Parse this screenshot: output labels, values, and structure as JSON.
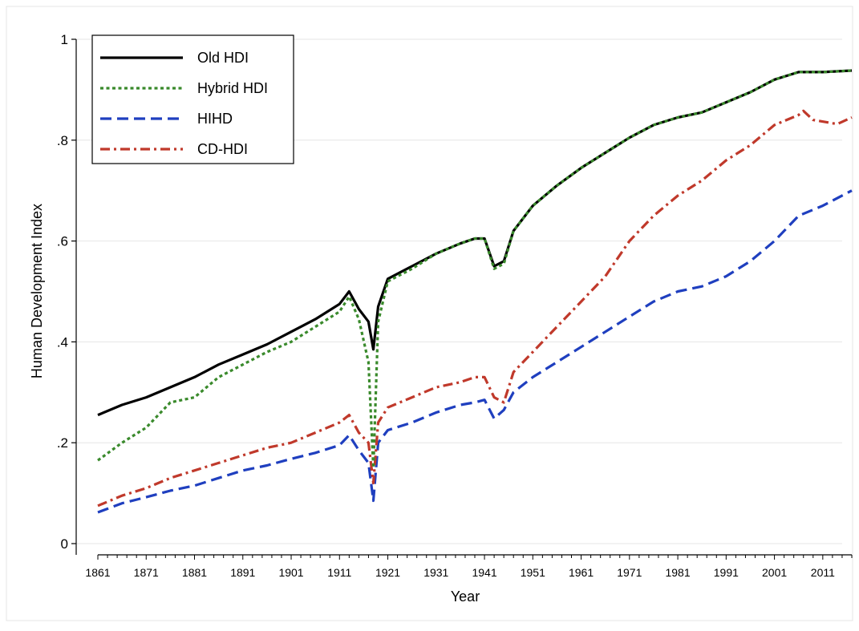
{
  "chart_data": {
    "type": "line",
    "title": "",
    "xlabel": "Year",
    "ylabel": "Human Development Index",
    "xlim": [
      1861,
      2017
    ],
    "ylim": [
      0,
      1
    ],
    "x_ticks": [
      1861,
      1871,
      1881,
      1891,
      1901,
      1911,
      1921,
      1931,
      1941,
      1951,
      1961,
      1971,
      1981,
      1991,
      2001,
      2011
    ],
    "x_tick_labels": [
      "1861",
      "1871",
      "1881",
      "1891",
      "1901",
      "1911",
      "1921",
      "1931",
      "1941",
      "1951",
      "1961",
      "1971",
      "1981",
      "1991",
      "2001",
      "2011"
    ],
    "y_ticks": [
      0,
      0.2,
      0.4,
      0.6,
      0.8,
      1
    ],
    "y_tick_labels": [
      "0",
      ".2",
      ".4",
      ".6",
      ".8",
      "1"
    ],
    "grid": "horizontal",
    "legend_position": "top-left",
    "series": [
      {
        "name": "Old HDI",
        "color": "#000000",
        "dash": "solid",
        "x": [
          1861,
          1866,
          1871,
          1876,
          1881,
          1886,
          1891,
          1896,
          1901,
          1906,
          1911,
          1913,
          1915,
          1917,
          1918,
          1919,
          1921,
          1926,
          1931,
          1936,
          1939,
          1941,
          1943,
          1945,
          1947,
          1951,
          1956,
          1961,
          1966,
          1971,
          1976,
          1981,
          1986,
          1991,
          1996,
          2001,
          2006,
          2011,
          2017
        ],
        "y": [
          0.255,
          0.275,
          0.29,
          0.31,
          0.33,
          0.355,
          0.375,
          0.395,
          0.42,
          0.445,
          0.475,
          0.5,
          0.465,
          0.44,
          0.385,
          0.47,
          0.525,
          0.55,
          0.575,
          0.595,
          0.605,
          0.605,
          0.55,
          0.56,
          0.62,
          0.67,
          0.71,
          0.745,
          0.775,
          0.805,
          0.83,
          0.845,
          0.855,
          0.875,
          0.895,
          0.92,
          0.935,
          0.935,
          0.938
        ]
      },
      {
        "name": "Hybrid HDI",
        "color": "#3a8a2c",
        "dash": "dotted",
        "x": [
          1861,
          1866,
          1871,
          1876,
          1881,
          1886,
          1891,
          1896,
          1901,
          1906,
          1911,
          1913,
          1915,
          1917,
          1918,
          1919,
          1921,
          1926,
          1931,
          1936,
          1939,
          1941,
          1943,
          1945,
          1947,
          1951,
          1956,
          1961,
          1966,
          1971,
          1976,
          1981,
          1986,
          1991,
          1996,
          2001,
          2006,
          2011,
          2017
        ],
        "y": [
          0.165,
          0.2,
          0.23,
          0.28,
          0.29,
          0.33,
          0.355,
          0.38,
          0.4,
          0.43,
          0.46,
          0.49,
          0.445,
          0.36,
          0.15,
          0.44,
          0.52,
          0.545,
          0.575,
          0.595,
          0.605,
          0.605,
          0.545,
          0.555,
          0.62,
          0.67,
          0.71,
          0.745,
          0.775,
          0.805,
          0.83,
          0.845,
          0.855,
          0.875,
          0.895,
          0.92,
          0.935,
          0.935,
          0.938
        ]
      },
      {
        "name": "HIHD",
        "color": "#1f3fbf",
        "dash": "dashed",
        "x": [
          1861,
          1866,
          1871,
          1876,
          1881,
          1886,
          1891,
          1896,
          1901,
          1906,
          1911,
          1913,
          1915,
          1917,
          1918,
          1919,
          1921,
          1926,
          1931,
          1936,
          1939,
          1941,
          1943,
          1945,
          1947,
          1951,
          1956,
          1961,
          1966,
          1971,
          1976,
          1981,
          1986,
          1991,
          1996,
          2001,
          2006,
          2011,
          2017
        ],
        "y": [
          0.062,
          0.08,
          0.092,
          0.105,
          0.115,
          0.13,
          0.145,
          0.155,
          0.168,
          0.18,
          0.195,
          0.215,
          0.185,
          0.16,
          0.085,
          0.2,
          0.225,
          0.24,
          0.26,
          0.275,
          0.28,
          0.285,
          0.248,
          0.265,
          0.3,
          0.33,
          0.36,
          0.39,
          0.42,
          0.45,
          0.48,
          0.5,
          0.51,
          0.53,
          0.56,
          0.6,
          0.65,
          0.67,
          0.7
        ]
      },
      {
        "name": "CD-HDI",
        "color": "#c0392b",
        "dash": "dashdot",
        "x": [
          1861,
          1866,
          1871,
          1876,
          1881,
          1886,
          1891,
          1896,
          1901,
          1906,
          1911,
          1913,
          1915,
          1917,
          1918,
          1919,
          1921,
          1926,
          1931,
          1936,
          1939,
          1941,
          1943,
          1945,
          1947,
          1951,
          1956,
          1961,
          1966,
          1971,
          1976,
          1981,
          1986,
          1991,
          1996,
          2001,
          2006,
          2007,
          2009,
          2014,
          2017
        ],
        "y": [
          0.075,
          0.095,
          0.11,
          0.13,
          0.145,
          0.16,
          0.175,
          0.19,
          0.2,
          0.22,
          0.24,
          0.255,
          0.22,
          0.2,
          0.12,
          0.24,
          0.27,
          0.29,
          0.31,
          0.32,
          0.33,
          0.33,
          0.29,
          0.28,
          0.34,
          0.38,
          0.43,
          0.48,
          0.53,
          0.6,
          0.65,
          0.69,
          0.72,
          0.76,
          0.79,
          0.83,
          0.85,
          0.858,
          0.84,
          0.832,
          0.845
        ]
      }
    ]
  }
}
